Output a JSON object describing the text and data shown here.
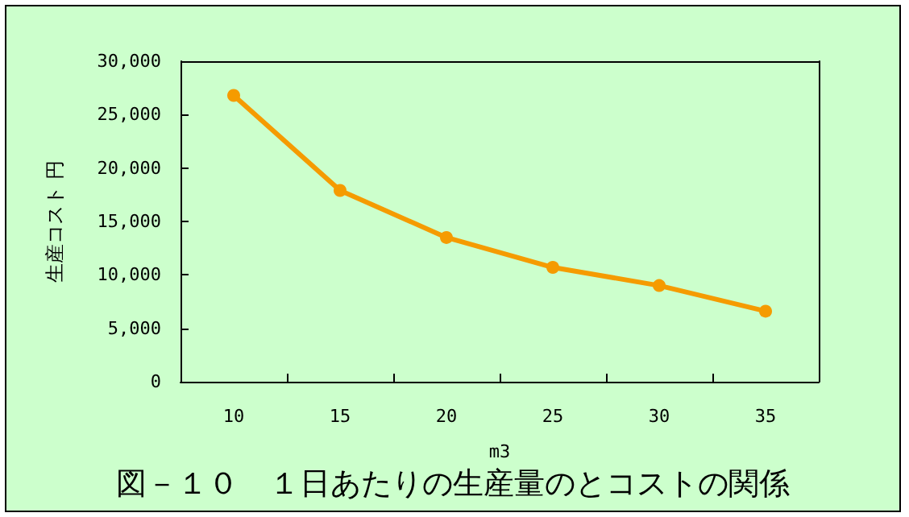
{
  "chart_data": {
    "type": "line",
    "title": "図－１０　１日あたりの生産量のとコストの関係",
    "xlabel": "m3",
    "ylabel": "生産コスト 円",
    "categories": [
      "10",
      "15",
      "20",
      "25",
      "30",
      "35"
    ],
    "series": [
      {
        "color": "#f59b00",
        "values": [
          26800,
          17900,
          13500,
          10700,
          9000,
          6600
        ]
      }
    ],
    "ylim": [
      0,
      30000
    ],
    "yticks": [
      {
        "value": 0,
        "label": "0"
      },
      {
        "value": 5000,
        "label": "5,000"
      },
      {
        "value": 10000,
        "label": "10,000"
      },
      {
        "value": 15000,
        "label": "15,000"
      },
      {
        "value": 20000,
        "label": "20,000"
      },
      {
        "value": 25000,
        "label": "25,000"
      },
      {
        "value": 30000,
        "label": "30,000"
      }
    ],
    "grid": false,
    "marker": "circle",
    "line_style": "solid"
  }
}
